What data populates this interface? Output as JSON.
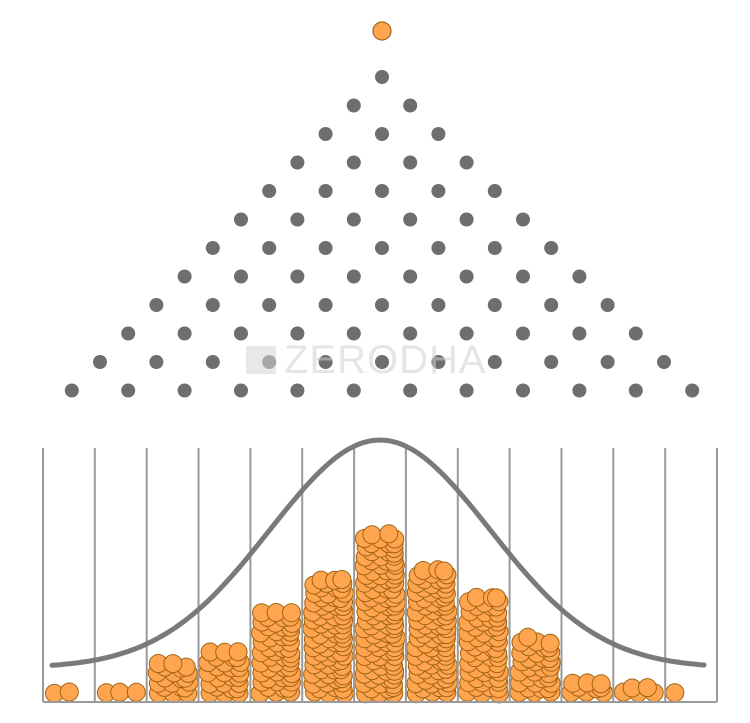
{
  "diagram": {
    "type": "galton-board",
    "peg_rows": 12,
    "bins": 13,
    "falling_ball_count": 1,
    "bin_ball_counts": [
      2,
      3,
      20,
      27,
      51,
      78,
      107,
      84,
      60,
      34,
      9,
      5,
      1
    ],
    "bell_curve": true
  },
  "watermark": {
    "text": "ZERODHA"
  },
  "colors": {
    "peg": "#6e6e6e",
    "ball_fill": "#ffa54f",
    "ball_stroke": "#a36414",
    "divider": "#9a9a9a",
    "curve": "#7a7a7a",
    "watermark": "#d0d0d0"
  }
}
